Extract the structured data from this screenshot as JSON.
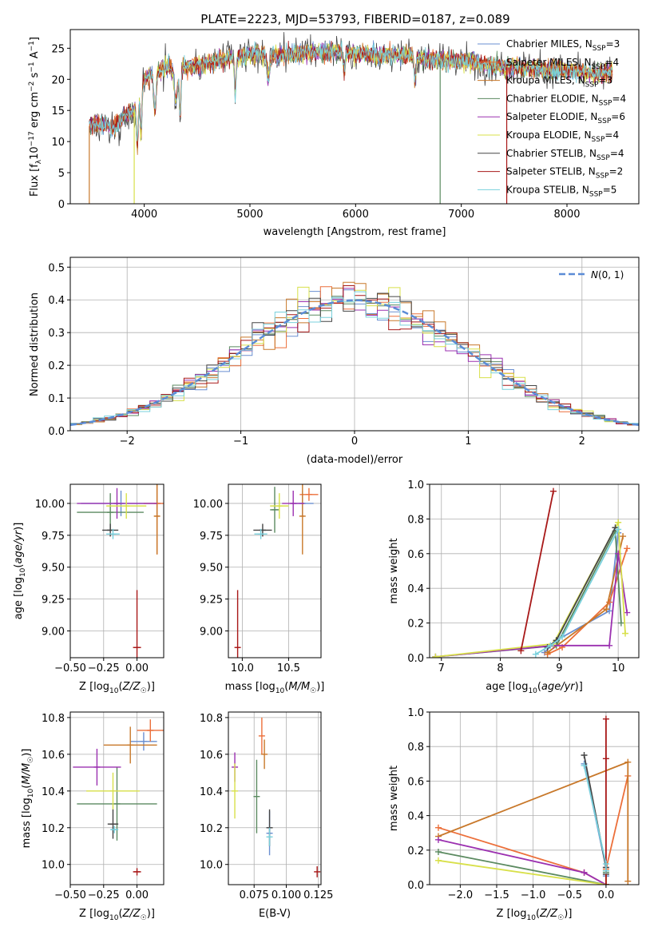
{
  "title": "PLATE=2223, MJD=53793, FIBERID=0187, z=0.089",
  "models": [
    {
      "name": "Chabrier MILES",
      "nssp": "3",
      "color": "#6a8fd1"
    },
    {
      "name": "Salpeter MILES",
      "nssp": "4",
      "color": "#ec6f3a"
    },
    {
      "name": "Kroupa MILES",
      "nssp": "3",
      "color": "#c8782a"
    },
    {
      "name": "Chabrier ELODIE",
      "nssp": "4",
      "color": "#5b8a60"
    },
    {
      "name": "Salpeter ELODIE",
      "nssp": "6",
      "color": "#9b30b0"
    },
    {
      "name": "Kroupa ELODIE",
      "nssp": "4",
      "color": "#d8e04a"
    },
    {
      "name": "Chabrier STELIB",
      "nssp": "4",
      "color": "#454545"
    },
    {
      "name": "Salpeter STELIB",
      "nssp": "2",
      "color": "#a81818"
    },
    {
      "name": "Kroupa STELIB",
      "nssp": "5",
      "color": "#78d0dc"
    }
  ],
  "chart_data": [
    {
      "type": "line",
      "id": "spectrum",
      "xlabel": "wavelength [Angstrom, rest frame]",
      "ylabel": "Flux [f_λ 10^-17 erg cm^-2 s^-1 A^-1]",
      "xlim": [
        3300,
        8680
      ],
      "ylim": [
        0,
        28
      ],
      "xticks": [
        4000,
        5000,
        6000,
        7000,
        8000
      ],
      "yticks": [
        0,
        5,
        10,
        15,
        20,
        25
      ],
      "continuum": [
        [
          3480,
          12.5
        ],
        [
          3600,
          13
        ],
        [
          3700,
          12
        ],
        [
          3800,
          14
        ],
        [
          3900,
          15
        ],
        [
          3950,
          17
        ],
        [
          4000,
          20
        ],
        [
          4100,
          21
        ],
        [
          4200,
          22
        ],
        [
          4400,
          22
        ],
        [
          4600,
          22.5
        ],
        [
          4800,
          23.5
        ],
        [
          5000,
          24
        ],
        [
          5200,
          24
        ],
        [
          5400,
          24
        ],
        [
          5600,
          24.5
        ],
        [
          5800,
          24.5
        ],
        [
          6000,
          24
        ],
        [
          6200,
          24
        ],
        [
          6400,
          24
        ],
        [
          6600,
          23.5
        ],
        [
          6800,
          23
        ],
        [
          7000,
          23
        ],
        [
          7200,
          22.5
        ],
        [
          7400,
          22
        ],
        [
          7600,
          22
        ],
        [
          7800,
          21.5
        ],
        [
          8000,
          21.5
        ],
        [
          8200,
          21
        ],
        [
          8430,
          21
        ]
      ]
    },
    {
      "type": "bar",
      "id": "residuals",
      "xlabel": "(data-model)/error",
      "ylabel": "Normed distribution",
      "xlim": [
        -2.5,
        2.5
      ],
      "ylim": [
        0,
        0.53
      ],
      "xticks": [
        -2,
        -1,
        0,
        1,
        2
      ],
      "yticks": [
        0,
        0.1,
        0.2,
        0.3,
        0.4,
        0.5
      ],
      "legend": "N(0,1)",
      "bin_width": 0.1
    },
    {
      "type": "scatter",
      "id": "age-vs-z",
      "xlabel": "Z [log10(Z/Z☉)]",
      "ylabel": "age  [log10(age/yr)]",
      "xlim": [
        -0.5,
        0.2
      ],
      "ylim": [
        8.79,
        10.15
      ],
      "xticks": [
        -0.5,
        -0.25,
        0.0
      ],
      "yticks": [
        9.0,
        9.25,
        9.5,
        9.75,
        10.0
      ],
      "points": [
        {
          "x": -0.12,
          "y": 10.0,
          "xerr": 0.3,
          "yerr": 0.1,
          "c": 0
        },
        {
          "x": 0.15,
          "y": 10.0,
          "xerr": 0.1,
          "yerr": 0.4,
          "c": 1
        },
        {
          "x": 0.15,
          "y": 9.9,
          "xerr": 0.02,
          "yerr": 0.3,
          "c": 2
        },
        {
          "x": -0.2,
          "y": 9.93,
          "xerr": 0.25,
          "yerr": 0.15,
          "c": 3
        },
        {
          "x": -0.15,
          "y": 10.0,
          "xerr": 0.3,
          "yerr": 0.12,
          "c": 4
        },
        {
          "x": -0.08,
          "y": 9.98,
          "xerr": 0.15,
          "yerr": 0.1,
          "c": 5
        },
        {
          "x": -0.2,
          "y": 9.79,
          "xerr": 0.06,
          "yerr": 0.05,
          "c": 6
        },
        {
          "x": 0.0,
          "y": 8.87,
          "xerr": 0.03,
          "yerr": 0.45,
          "c": 7
        },
        {
          "x": -0.18,
          "y": 9.76,
          "xerr": 0.05,
          "yerr": 0.04,
          "c": 8
        }
      ]
    },
    {
      "type": "scatter",
      "id": "age-vs-mass",
      "xlabel": "mass [log10(M/M☉)]",
      "ylabel": "",
      "xlim": [
        9.85,
        10.85
      ],
      "ylim": [
        8.79,
        10.15
      ],
      "xticks": [
        10.0,
        10.5
      ],
      "yticks": [
        9.0,
        9.25,
        9.5,
        9.75,
        10.0
      ],
      "points": [
        {
          "x": 10.65,
          "y": 10.0,
          "xerr": 0.12,
          "yerr": 0.1,
          "c": 0
        },
        {
          "x": 10.72,
          "y": 10.07,
          "xerr": 0.1,
          "yerr": 0.05,
          "c": 1
        },
        {
          "x": 10.65,
          "y": 9.9,
          "xerr": 0.02,
          "yerr": 0.3,
          "c": 2
        },
        {
          "x": 10.35,
          "y": 9.95,
          "xerr": 0.05,
          "yerr": 0.18,
          "c": 3
        },
        {
          "x": 10.55,
          "y": 10.0,
          "xerr": 0.12,
          "yerr": 0.1,
          "c": 4
        },
        {
          "x": 10.4,
          "y": 9.98,
          "xerr": 0.1,
          "yerr": 0.1,
          "c": 5
        },
        {
          "x": 10.22,
          "y": 9.79,
          "xerr": 0.1,
          "yerr": 0.05,
          "c": 6
        },
        {
          "x": 9.95,
          "y": 8.87,
          "xerr": 0.02,
          "yerr": 0.45,
          "c": 7
        },
        {
          "x": 10.2,
          "y": 9.76,
          "xerr": 0.07,
          "yerr": 0.04,
          "c": 8
        }
      ]
    },
    {
      "type": "line",
      "id": "massweight-vs-age",
      "xlabel": "age  [log10(age/yr)]",
      "ylabel": "mass weight",
      "xlim": [
        6.8,
        10.35
      ],
      "ylim": [
        0,
        1
      ],
      "xticks": [
        7,
        8,
        9,
        10
      ],
      "yticks": [
        0.0,
        0.2,
        0.4,
        0.6,
        0.8,
        1.0
      ],
      "series": [
        {
          "c": 0,
          "x": [
            8.75,
            8.95,
            9.85,
            10.0
          ],
          "y": [
            0.03,
            0.1,
            0.27,
            0.72
          ]
        },
        {
          "c": 1,
          "x": [
            8.8,
            9.05,
            9.85,
            10.15
          ],
          "y": [
            0.02,
            0.06,
            0.32,
            0.63
          ]
        },
        {
          "c": 2,
          "x": [
            8.8,
            9.8,
            10.08
          ],
          "y": [
            0.03,
            0.28,
            0.7
          ]
        },
        {
          "c": 3,
          "x": [
            6.9,
            8.95,
            9.95,
            10.05
          ],
          "y": [
            0.005,
            0.07,
            0.73,
            0.2
          ]
        },
        {
          "c": 4,
          "x": [
            6.9,
            8.9,
            9.85,
            10.0,
            10.15
          ],
          "y": [
            0.005,
            0.07,
            0.07,
            0.6,
            0.26
          ]
        },
        {
          "c": 5,
          "x": [
            6.9,
            8.9,
            10.0,
            10.12
          ],
          "y": [
            0.005,
            0.08,
            0.78,
            0.14
          ]
        },
        {
          "c": 6,
          "x": [
            8.8,
            8.95,
            9.95
          ],
          "y": [
            0.06,
            0.1,
            0.75
          ]
        },
        {
          "c": 7,
          "x": [
            8.35,
            8.9
          ],
          "y": [
            0.04,
            0.96
          ]
        },
        {
          "c": 8,
          "x": [
            8.6,
            8.85,
            9.05,
            10.0
          ],
          "y": [
            0.02,
            0.07,
            0.12,
            0.74
          ]
        }
      ]
    },
    {
      "type": "scatter",
      "id": "mass-vs-z",
      "xlabel": "Z [log10(Z/Z☉)]",
      "ylabel": "mass [log10(M/M☉)]",
      "xlim": [
        -0.5,
        0.2
      ],
      "ylim": [
        9.89,
        10.83
      ],
      "xticks": [
        -0.5,
        -0.25,
        0.0
      ],
      "yticks": [
        10.0,
        10.2,
        10.4,
        10.6,
        10.8
      ],
      "points": [
        {
          "x": 0.05,
          "y": 10.67,
          "xerr": 0.1,
          "yerr": 0.05,
          "c": 0
        },
        {
          "x": 0.1,
          "y": 10.73,
          "xerr": 0.1,
          "yerr": 0.06,
          "c": 1
        },
        {
          "x": -0.05,
          "y": 10.65,
          "xerr": 0.2,
          "yerr": 0.1,
          "c": 2
        },
        {
          "x": -0.15,
          "y": 10.33,
          "xerr": 0.3,
          "yerr": 0.2,
          "c": 3
        },
        {
          "x": -0.3,
          "y": 10.53,
          "xerr": 0.18,
          "yerr": 0.1,
          "c": 4
        },
        {
          "x": -0.18,
          "y": 10.4,
          "xerr": 0.2,
          "yerr": 0.1,
          "c": 5
        },
        {
          "x": -0.18,
          "y": 10.22,
          "xerr": 0.04,
          "yerr": 0.08,
          "c": 6
        },
        {
          "x": 0.0,
          "y": 9.96,
          "xerr": 0.03,
          "yerr": 0.02,
          "c": 7
        },
        {
          "x": -0.17,
          "y": 10.19,
          "xerr": 0.03,
          "yerr": 0.02,
          "c": 8
        }
      ]
    },
    {
      "type": "scatter",
      "id": "mass-vs-ebv",
      "xlabel": "E(B-V)",
      "ylabel": "",
      "xlim": [
        0.055,
        0.127
      ],
      "ylim": [
        9.89,
        10.83
      ],
      "xticks": [
        0.075,
        0.1,
        0.125
      ],
      "yticks": [
        10.0,
        10.2,
        10.4,
        10.6,
        10.8
      ],
      "points": [
        {
          "x": 0.087,
          "y": 10.17,
          "xerr": 0,
          "yerr": 0.12,
          "c": 0
        },
        {
          "x": 0.081,
          "y": 10.7,
          "xerr": 0,
          "yerr": 0.1,
          "c": 1
        },
        {
          "x": 0.083,
          "y": 10.6,
          "xerr": 0,
          "yerr": 0.08,
          "c": 2
        },
        {
          "x": 0.077,
          "y": 10.37,
          "xerr": 0,
          "yerr": 0.2,
          "c": 3
        },
        {
          "x": 0.06,
          "y": 10.53,
          "xerr": 0,
          "yerr": 0.08,
          "c": 4
        },
        {
          "x": 0.06,
          "y": 10.4,
          "xerr": 0,
          "yerr": 0.15,
          "c": 5
        },
        {
          "x": 0.087,
          "y": 10.2,
          "xerr": 0,
          "yerr": 0.1,
          "c": 6
        },
        {
          "x": 0.124,
          "y": 9.96,
          "xerr": 0,
          "yerr": 0.03,
          "c": 7
        },
        {
          "x": 0.087,
          "y": 10.15,
          "xerr": 0,
          "yerr": 0.05,
          "c": 8
        }
      ]
    },
    {
      "type": "line",
      "id": "massweight-vs-z",
      "xlabel": "Z [log10(Z/Z☉)]",
      "ylabel": "mass weight",
      "xlim": [
        -2.42,
        0.45
      ],
      "ylim": [
        0,
        1
      ],
      "xticks": [
        -2.0,
        -1.5,
        -1.0,
        -0.5,
        0.0
      ],
      "yticks": [
        0.0,
        0.2,
        0.4,
        0.6,
        0.8,
        1.0
      ],
      "series": [
        {
          "c": 0,
          "x": [
            -0.3,
            0.0,
            0.0
          ],
          "y": [
            0.7,
            0.1,
            0.05
          ]
        },
        {
          "c": 1,
          "x": [
            -2.3,
            -0.3,
            0.0,
            0.0,
            0.3
          ],
          "y": [
            0.33,
            0.07,
            0.0,
            0.09,
            0.63
          ]
        },
        {
          "c": 2,
          "x": [
            -2.3,
            0.3,
            0.3
          ],
          "y": [
            0.28,
            0.71,
            0.02
          ]
        },
        {
          "c": 3,
          "x": [
            -2.3,
            0.0,
            0.0
          ],
          "y": [
            0.19,
            0.0,
            0.07
          ]
        },
        {
          "c": 4,
          "x": [
            -2.3,
            -0.3,
            0.0
          ],
          "y": [
            0.26,
            0.07,
            0.0
          ]
        },
        {
          "c": 5,
          "x": [
            -2.3,
            0.0,
            0.0
          ],
          "y": [
            0.14,
            0.0,
            0.08
          ]
        },
        {
          "c": 6,
          "x": [
            -0.3,
            0.0,
            0.0
          ],
          "y": [
            0.75,
            0.1,
            0.06
          ]
        },
        {
          "c": 7,
          "x": [
            0.0,
            0.0,
            0.0
          ],
          "y": [
            0.96,
            0.73,
            0.0
          ]
        },
        {
          "c": 8,
          "x": [
            -0.3,
            0.0,
            0.0
          ],
          "y": [
            0.69,
            0.12,
            0.08
          ]
        }
      ]
    }
  ]
}
